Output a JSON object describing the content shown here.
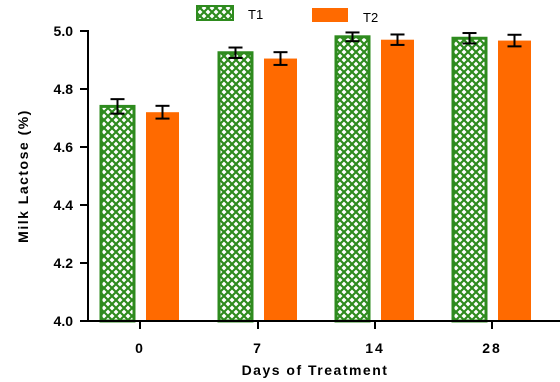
{
  "chart_data": {
    "type": "bar",
    "categories": [
      "0",
      "7",
      "14",
      "28"
    ],
    "series": [
      {
        "name": "T1",
        "values": [
          4.74,
          4.925,
          4.98,
          4.975
        ],
        "errors": [
          0.025,
          0.018,
          0.015,
          0.018
        ],
        "color": "#2e8b1e",
        "pattern": "crosshatch"
      },
      {
        "name": "T2",
        "values": [
          4.72,
          4.905,
          4.97,
          4.967
        ],
        "errors": [
          0.022,
          0.022,
          0.018,
          0.02
        ],
        "color": "#ff6a00",
        "pattern": "solid"
      }
    ],
    "xlabel": "Days of Treatment",
    "ylabel": "Milk Lactose (%)",
    "ylim": [
      4.0,
      5.0
    ],
    "yticks": [
      "4.0",
      "4.2",
      "4.4",
      "4.6",
      "4.8",
      "5.0"
    ],
    "legend": "top",
    "grid": false
  }
}
